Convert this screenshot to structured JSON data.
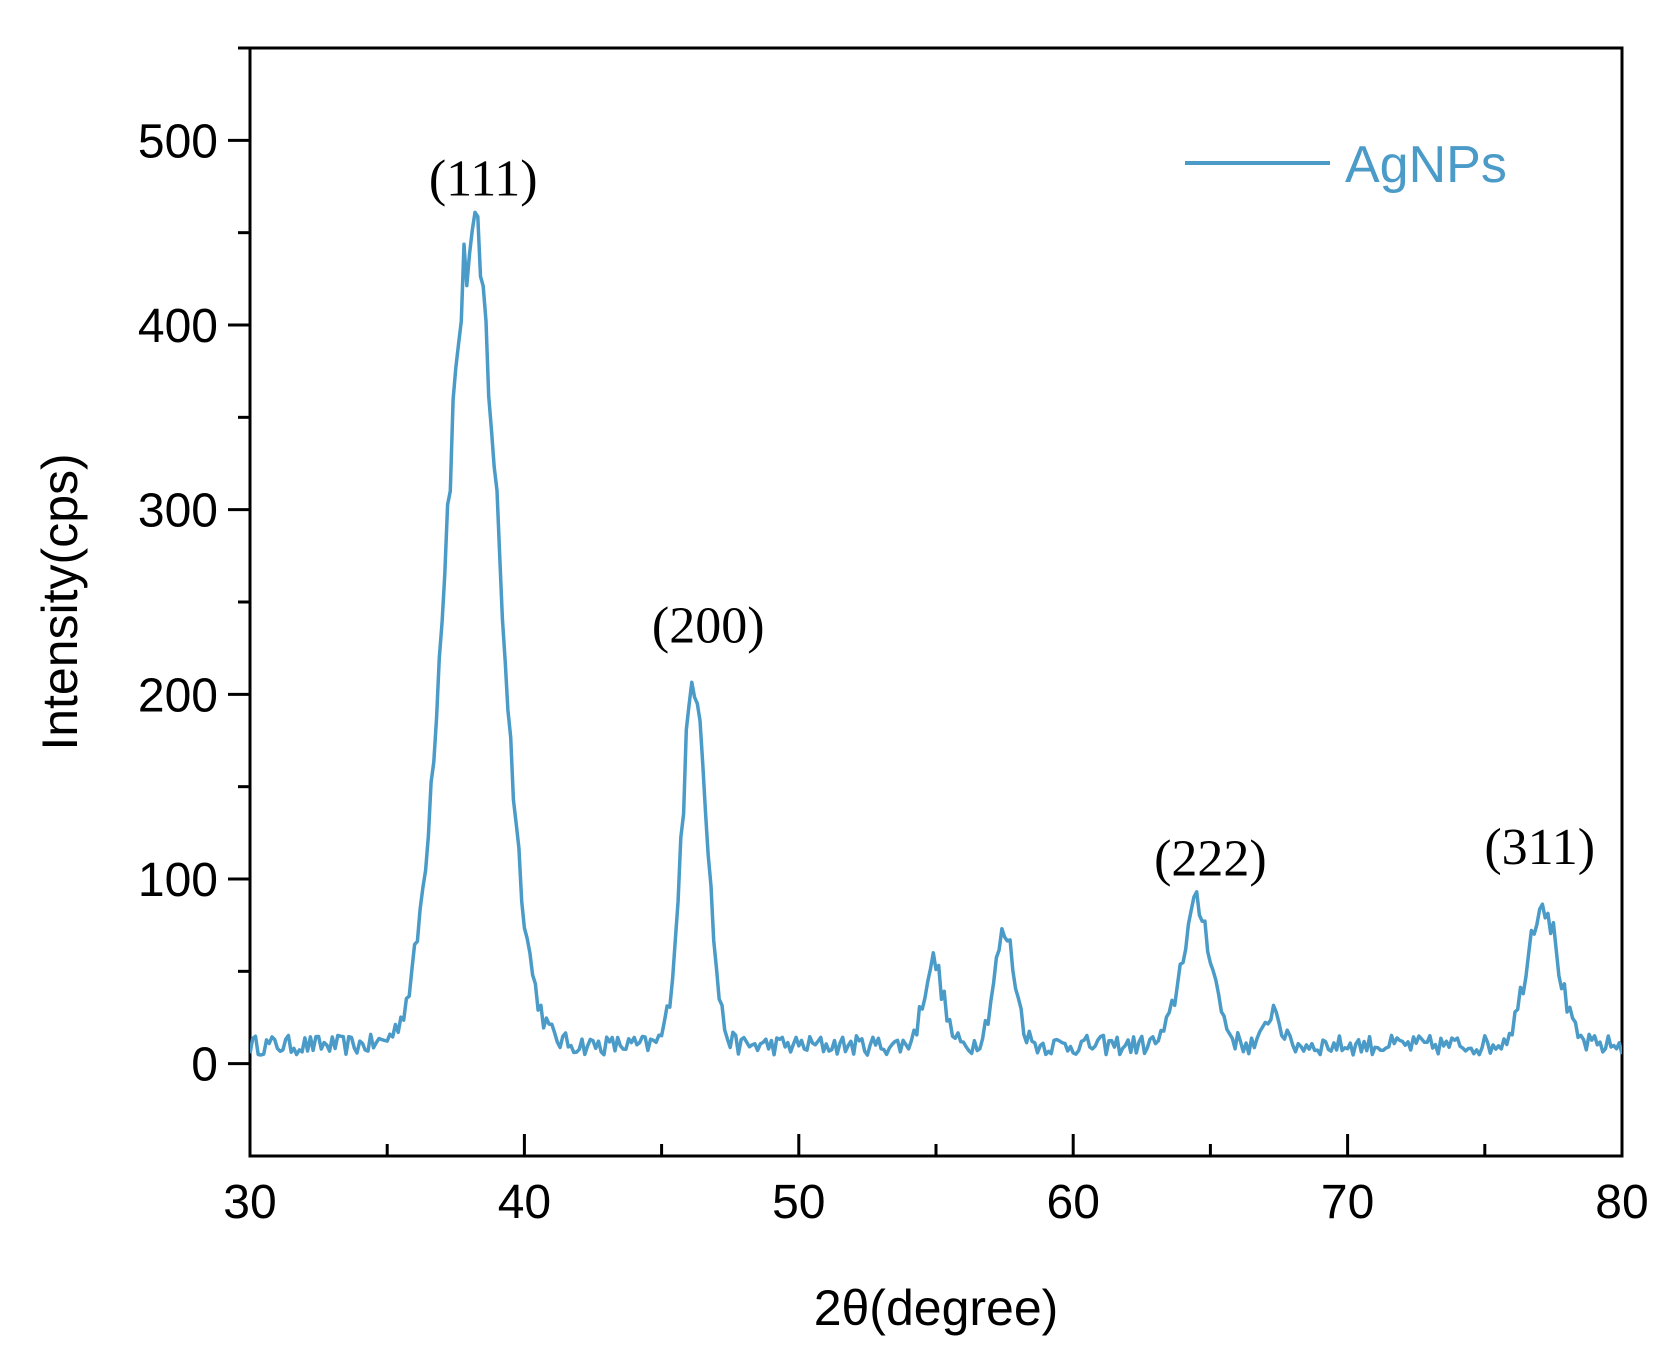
{
  "chart_data": {
    "type": "line",
    "title": "",
    "xlabel": "2θ(degree)",
    "ylabel": "Intensity(cps)",
    "xlim": [
      30,
      80
    ],
    "ylim": [
      -50,
      550
    ],
    "x_ticks": [
      30,
      40,
      50,
      60,
      70,
      80
    ],
    "x_tick_labels": [
      "30",
      "40",
      "50",
      "60",
      "70",
      "80"
    ],
    "x_minor_step": 5,
    "y_ticks": [
      0,
      100,
      200,
      300,
      400,
      500
    ],
    "y_tick_labels": [
      "0",
      "100",
      "200",
      "300",
      "400",
      "500"
    ],
    "y_minor_step": 50,
    "grid": false,
    "legend": {
      "position": "top-right",
      "entries": [
        "AgNPs"
      ]
    },
    "series": [
      {
        "name": "AgNPs",
        "color": "#4A9BC8",
        "baseline": 10,
        "noise": 5,
        "x_step": 0.1,
        "peaks": [
          {
            "x": 38.1,
            "y": 445
          },
          {
            "x": 46.2,
            "y": 210
          },
          {
            "x": 54.9,
            "y": 55
          },
          {
            "x": 57.5,
            "y": 70
          },
          {
            "x": 64.5,
            "y": 85
          },
          {
            "x": 67.3,
            "y": 30
          },
          {
            "x": 77.1,
            "y": 88
          }
        ]
      }
    ],
    "annotations": [
      {
        "text": "(111)",
        "x": 38.5,
        "y": 470
      },
      {
        "text": "(200)",
        "x": 46.7,
        "y": 228
      },
      {
        "text": "(222)",
        "x": 65.0,
        "y": 102
      },
      {
        "text": "(311)",
        "x": 77.0,
        "y": 108
      }
    ]
  }
}
